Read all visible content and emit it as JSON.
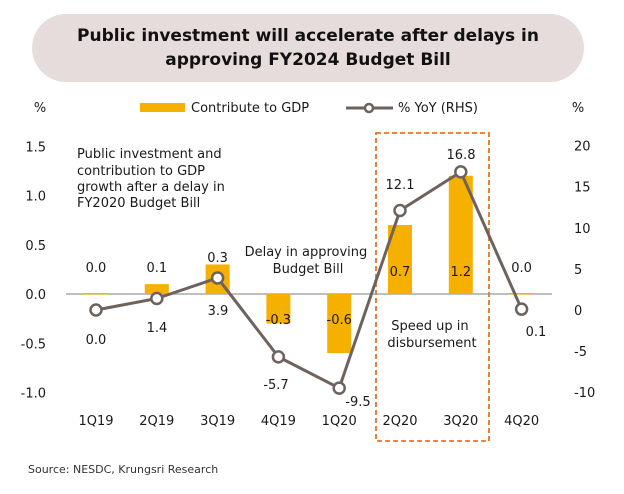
{
  "colors": {
    "bar": "#F5B000",
    "line": "#6E625E",
    "marker_fill": "#FFFFFF",
    "highlight_box": "#F07020",
    "title_bg": "#E6DCDC",
    "axis": "#999999"
  },
  "chart_data": {
    "type": "bar+line",
    "title": "Public investment will accelerate after delays in approving FY2024 Budget Bill",
    "categories": [
      "1Q19",
      "2Q19",
      "3Q19",
      "4Q19",
      "1Q20",
      "2Q20",
      "3Q20",
      "4Q20"
    ],
    "series": [
      {
        "name": "Contribute to GDP",
        "type": "bar",
        "axis": "left",
        "values": [
          0.0,
          0.1,
          0.3,
          -0.3,
          -0.6,
          0.7,
          1.2,
          0.0
        ],
        "labels": [
          "0.0",
          "0.1",
          "0.3",
          "-0.3",
          "-0.6",
          "0.7",
          "1.2",
          "0.0"
        ]
      },
      {
        "name": "% YoY (RHS)",
        "type": "line",
        "axis": "right",
        "values": [
          0.0,
          1.4,
          3.9,
          -5.7,
          -9.5,
          12.1,
          16.8,
          0.1
        ],
        "labels": [
          "0.0",
          "1.4",
          "3.9",
          "-5.7",
          "-9.5",
          "12.1",
          "16.8",
          "0.1"
        ]
      }
    ],
    "left_axis": {
      "unit_label": "%",
      "ylim": [
        -1.0,
        1.5
      ],
      "ticks": [
        "1.5",
        "1.0",
        "0.5",
        "0.0",
        "-0.5",
        "-1.0"
      ],
      "tick_values": [
        1.5,
        1.0,
        0.5,
        0.0,
        -0.5,
        -1.0
      ]
    },
    "right_axis": {
      "unit_label": "%",
      "ylim": [
        -10,
        20
      ],
      "ticks": [
        "20",
        "15",
        "10",
        "5",
        "0",
        "-5",
        "-10"
      ],
      "tick_values": [
        20,
        15,
        10,
        5,
        0,
        -5,
        -10
      ]
    },
    "legend": {
      "placement": "top-center",
      "items": [
        "Contribute to GDP",
        "% YoY (RHS)"
      ]
    },
    "grid": false,
    "annotations": [
      {
        "text_lines": [
          "Public investment and",
          "contribution to GDP",
          "growth after a delay in",
          "FY2020 Budget Bill"
        ],
        "placement": "top-left"
      },
      {
        "text_lines": [
          "Delay in approving",
          "Budget Bill"
        ],
        "placement": "above 4Q19-1Q20"
      },
      {
        "text_lines": [
          "Speed up in",
          "disbursement"
        ],
        "placement": "inside highlight box, below zero"
      }
    ],
    "highlight": {
      "categories": [
        "2Q20",
        "3Q20"
      ],
      "style": "dashed box"
    }
  },
  "source": "Source: NESDC, Krungsri Research"
}
